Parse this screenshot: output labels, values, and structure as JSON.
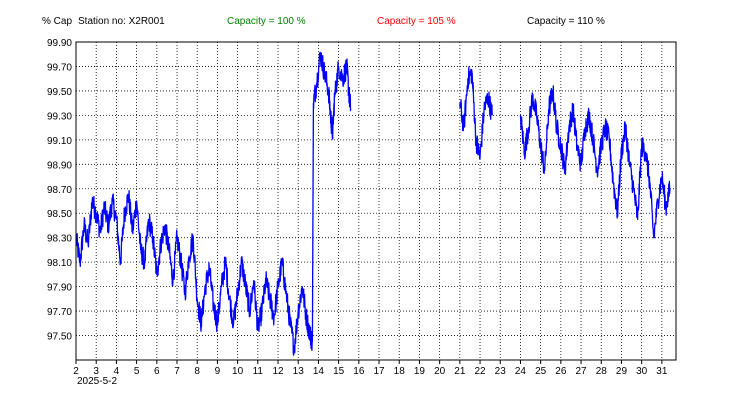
{
  "header": {
    "y_unit": "% Cap",
    "station": "Station no: X2R001",
    "capacity_labels": [
      {
        "text": "Capacity = 100 %",
        "color": "#008000"
      },
      {
        "text": "Capacity = 105 %",
        "color": "#ff0000"
      },
      {
        "text": "Capacity = 110 %",
        "color": "#000000"
      }
    ]
  },
  "colors": {
    "series": "#0000ff",
    "grid": "#000000",
    "axis": "#000000"
  },
  "chart_data": {
    "type": "line",
    "xlabel": "2025-5-2",
    "ylabel": "% Cap",
    "xlim": [
      2,
      31.7
    ],
    "ylim": [
      97.3,
      99.9
    ],
    "y_ticks": [
      "99.90",
      "99.70",
      "99.50",
      "99.30",
      "99.10",
      "98.90",
      "98.70",
      "98.50",
      "98.30",
      "98.10",
      "97.90",
      "97.70",
      "97.50"
    ],
    "x_ticks": [
      "2",
      "3",
      "4",
      "5",
      "6",
      "7",
      "8",
      "9",
      "10",
      "11",
      "12",
      "13",
      "14",
      "15",
      "16",
      "17",
      "18",
      "19",
      "20",
      "21",
      "22",
      "23",
      "24",
      "25",
      "26",
      "27",
      "28",
      "29",
      "30",
      "31"
    ],
    "grid": true,
    "series": [
      {
        "segments": [
          [
            [
              2.0,
              98.3
            ],
            [
              2.2,
              98.1
            ],
            [
              2.4,
              98.4
            ],
            [
              2.6,
              98.25
            ],
            [
              2.8,
              98.6
            ],
            [
              3.0,
              98.5
            ],
            [
              3.2,
              98.35
            ],
            [
              3.4,
              98.55
            ],
            [
              3.6,
              98.4
            ],
            [
              3.8,
              98.6
            ],
            [
              4.0,
              98.45
            ],
            [
              4.2,
              98.1
            ],
            [
              4.4,
              98.5
            ],
            [
              4.6,
              98.65
            ],
            [
              4.8,
              98.35
            ],
            [
              5.0,
              98.6
            ],
            [
              5.2,
              98.2
            ],
            [
              5.4,
              98.1
            ],
            [
              5.6,
              98.45
            ],
            [
              5.8,
              98.3
            ],
            [
              6.0,
              98.0
            ],
            [
              6.2,
              98.25
            ],
            [
              6.4,
              98.4
            ],
            [
              6.6,
              98.2
            ],
            [
              6.8,
              97.95
            ],
            [
              7.0,
              98.3
            ],
            [
              7.2,
              98.1
            ],
            [
              7.4,
              97.85
            ],
            [
              7.6,
              98.15
            ],
            [
              7.8,
              98.3
            ],
            [
              8.0,
              97.8
            ],
            [
              8.2,
              97.6
            ],
            [
              8.4,
              97.9
            ],
            [
              8.6,
              98.05
            ],
            [
              8.8,
              97.75
            ],
            [
              9.0,
              97.6
            ],
            [
              9.2,
              97.9
            ],
            [
              9.4,
              98.1
            ],
            [
              9.6,
              97.8
            ],
            [
              9.8,
              97.6
            ],
            [
              10.0,
              97.85
            ],
            [
              10.2,
              98.1
            ],
            [
              10.4,
              97.9
            ],
            [
              10.6,
              97.7
            ],
            [
              10.8,
              97.95
            ],
            [
              11.0,
              97.55
            ],
            [
              11.2,
              97.7
            ],
            [
              11.4,
              97.95
            ],
            [
              11.6,
              97.8
            ],
            [
              11.8,
              97.65
            ],
            [
              12.0,
              97.9
            ],
            [
              12.2,
              98.1
            ],
            [
              12.4,
              97.85
            ],
            [
              12.6,
              97.6
            ],
            [
              12.8,
              97.4
            ],
            [
              13.0,
              97.7
            ],
            [
              13.2,
              97.9
            ],
            [
              13.4,
              97.65
            ],
            [
              13.6,
              97.5
            ],
            [
              13.7,
              97.45
            ]
          ],
          [
            [
              13.7,
              97.45
            ],
            [
              13.75,
              99.4
            ],
            [
              13.9,
              99.55
            ],
            [
              14.1,
              99.8
            ],
            [
              14.3,
              99.65
            ],
            [
              14.5,
              99.5
            ],
            [
              14.6,
              99.3
            ],
            [
              14.7,
              99.15
            ],
            [
              14.8,
              99.45
            ],
            [
              15.0,
              99.7
            ],
            [
              15.2,
              99.6
            ],
            [
              15.4,
              99.7
            ],
            [
              15.5,
              99.5
            ],
            [
              15.6,
              99.35
            ]
          ],
          [
            [
              21.0,
              99.4
            ],
            [
              21.2,
              99.2
            ],
            [
              21.4,
              99.6
            ],
            [
              21.6,
              99.65
            ],
            [
              21.8,
              99.1
            ],
            [
              22.0,
              98.95
            ],
            [
              22.2,
              99.35
            ],
            [
              22.4,
              99.45
            ],
            [
              22.6,
              99.3
            ]
          ],
          [
            [
              24.0,
              99.3
            ],
            [
              24.2,
              99.0
            ],
            [
              24.4,
              99.2
            ],
            [
              24.6,
              99.45
            ],
            [
              24.8,
              99.3
            ],
            [
              25.0,
              99.05
            ],
            [
              25.2,
              98.85
            ],
            [
              25.4,
              99.35
            ],
            [
              25.6,
              99.5
            ],
            [
              25.8,
              99.2
            ],
            [
              26.0,
              99.05
            ],
            [
              26.2,
              98.85
            ],
            [
              26.4,
              99.2
            ],
            [
              26.6,
              99.35
            ],
            [
              26.8,
              99.05
            ],
            [
              27.0,
              98.9
            ],
            [
              27.2,
              99.2
            ],
            [
              27.4,
              99.3
            ],
            [
              27.6,
              99.1
            ],
            [
              27.8,
              98.85
            ],
            [
              28.0,
              99.05
            ],
            [
              28.2,
              99.2
            ],
            [
              28.4,
              99.1
            ],
            [
              28.6,
              98.75
            ],
            [
              28.8,
              98.5
            ],
            [
              29.0,
              99.0
            ],
            [
              29.2,
              99.2
            ],
            [
              29.4,
              98.9
            ],
            [
              29.6,
              98.7
            ],
            [
              29.8,
              98.45
            ],
            [
              30.0,
              99.05
            ],
            [
              30.2,
              99.0
            ],
            [
              30.4,
              98.75
            ],
            [
              30.6,
              98.3
            ],
            [
              30.8,
              98.6
            ],
            [
              31.0,
              98.8
            ],
            [
              31.2,
              98.55
            ],
            [
              31.4,
              98.7
            ]
          ]
        ]
      }
    ]
  }
}
